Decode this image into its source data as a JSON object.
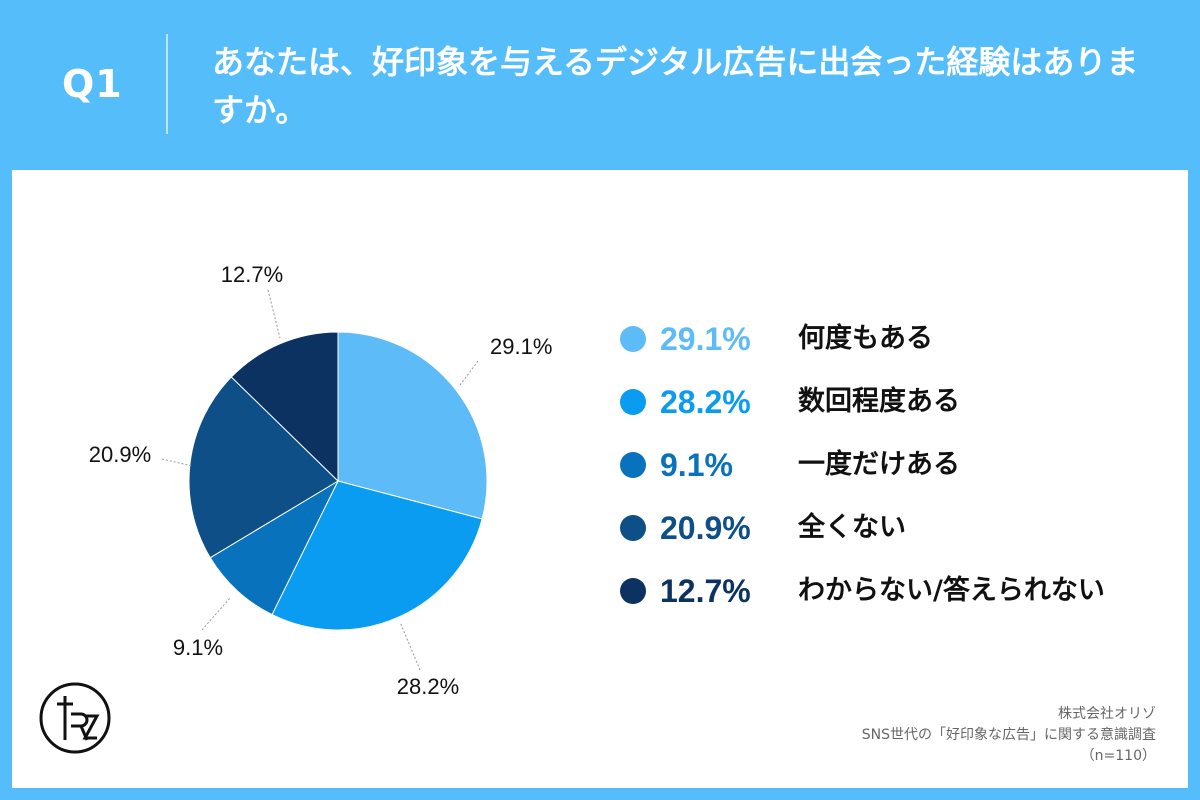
{
  "header": {
    "q_label": "Q1",
    "question": "あなたは、好印象を与えるデジタル広告に出会った経験はありますか。"
  },
  "chart_data": {
    "type": "pie",
    "categories": [
      "何度もある",
      "数回程度ある",
      "一度だけある",
      "全くない",
      "わからない/答えられない"
    ],
    "values": [
      29.1,
      28.2,
      9.1,
      20.9,
      12.7
    ],
    "value_labels": [
      "29.1%",
      "28.2%",
      "9.1%",
      "20.9%",
      "12.7%"
    ],
    "colors": [
      "#5dbcf7",
      "#0a9cf0",
      "#0872bd",
      "#0d4f86",
      "#0b3260"
    ],
    "title": "",
    "legend_position": "right"
  },
  "footer": {
    "company": "株式会社オリゾ",
    "survey": "SNS世代の「好印象な広告」に関する意識調査",
    "sample": "（n=110）"
  },
  "logo": {
    "text": "RZ"
  }
}
